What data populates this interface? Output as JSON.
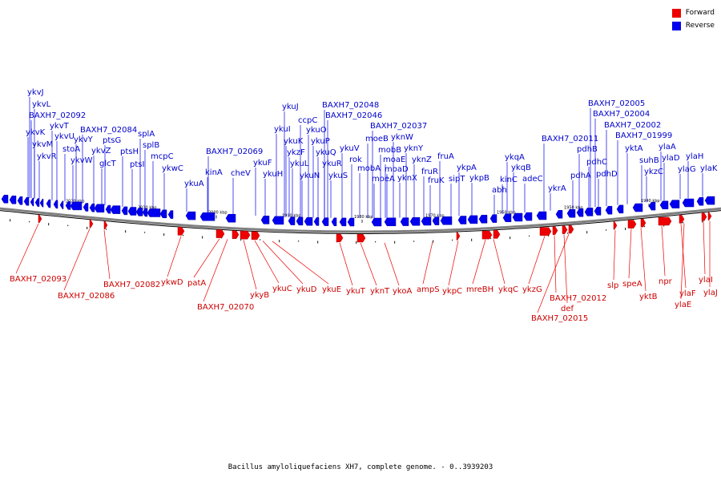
{
  "legend": [
    {
      "label": "Forward",
      "color": "#ee0000"
    },
    {
      "label": "Reverse",
      "color": "#0000ee"
    }
  ],
  "caption": "Bacillus amyloliquefaciens XH7, complete genome. - 0..3939203",
  "colors": {
    "forward": "#ee0000",
    "reverse": "#0000ee",
    "forward_label": "#cc0000",
    "reverse_label": "#0000cc",
    "backbone": "#808080"
  },
  "kbp_ticks": [
    "2020 kbp",
    "2010 kbp",
    "2000 kbp",
    "1990 kbp",
    "1980 kbp",
    "1970 kbp",
    "1960 kbp",
    "1950 kbp",
    "1940 kbp"
  ],
  "reverse_genes": [
    "ykvJ",
    "ykvL",
    "BAXH7_02092",
    "ykvK",
    "ykvT",
    "ykvM",
    "ykvU",
    "ykvR",
    "stoA",
    "ykvW",
    "BAXH7_02084",
    "ykvY",
    "ptsG",
    "ykvZ",
    "glcT",
    "ptsH",
    "ptsI",
    "splA",
    "splB",
    "mcpC",
    "ykwC",
    "kinA",
    "ykuA",
    "BAXH7_02069",
    "cheV",
    "ykuF",
    "ykuH",
    "ykuJ",
    "ykuI",
    "ccpC",
    "ykuK",
    "ykzF",
    "ykuL",
    "ykuN",
    "ykuO",
    "ykuP",
    "ykuQ",
    "ykuR",
    "ykuS",
    "BAXH7_02048",
    "BAXH7_02046",
    "ykuV",
    "rok",
    "moeB",
    "mobA",
    "moeA",
    "mobB",
    "moaE",
    "moaD",
    "BAXH7_02037",
    "yknW",
    "yknY",
    "yknX",
    "yknZ",
    "fruR",
    "fruK",
    "fruA",
    "sipT",
    "ykpA",
    "ykpB",
    "ykqA",
    "kinC",
    "ykqB",
    "abh",
    "adeC",
    "ykrA",
    "BAXH7_02011",
    "pdhB",
    "pdhA",
    "pdhC",
    "pdhD",
    "BAXH7_02005",
    "BAXH7_02004",
    "BAXH7_02002",
    "BAXH7_01999",
    "yktA",
    "suhB",
    "ylaA",
    "ylaD",
    "ykzC",
    "ylaH",
    "ylaG",
    "ylaK"
  ],
  "forward_genes": [
    "BAXH7_02093",
    "BAXH7_02086",
    "BAXH7_02082",
    "ykwD",
    "patA",
    "BAXH7_02070",
    "ykyB",
    "ykuC",
    "ykuD",
    "ykuE",
    "ykuT",
    "yknT",
    "ykoA",
    "ampS",
    "ykpC",
    "mreBH",
    "ykqC",
    "ykzG",
    "BAXH7_02012",
    "def",
    "BAXH7_02015",
    "slp",
    "speA",
    "yktB",
    "npr",
    "ylaF",
    "ylaE",
    "ylaI",
    "ylaJ"
  ]
}
